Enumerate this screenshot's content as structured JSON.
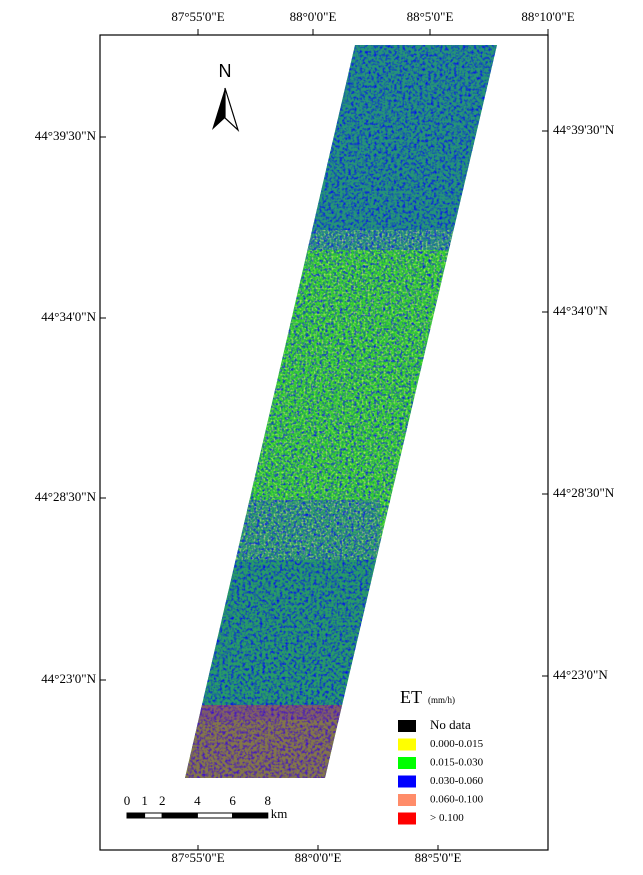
{
  "map": {
    "top_labels": [
      "87°55'0\"E",
      "88°0'0\"E",
      "88°5'0\"E",
      "88°10'0\"E"
    ],
    "bottom_labels": [
      "87°55'0\"E",
      "88°0'0\"E",
      "88°5'0\"E"
    ],
    "left_labels": [
      "44°39'30\"N",
      "44°34'0\"N",
      "44°28'30\"N",
      "44°23'0\"N"
    ],
    "right_labels": [
      "44°39'30\"N",
      "44°34'0\"N",
      "44°28'30\"N",
      "44°23'0\"N"
    ],
    "north": "N",
    "scale_bar": {
      "ticks": [
        0,
        1,
        2,
        4,
        6,
        8
      ],
      "unit": "km"
    },
    "legend": {
      "title": "ET",
      "unit": "(mm/h)",
      "items": [
        {
          "label": "No data",
          "color": "#000000"
        },
        {
          "label": "0.000-0.015",
          "color": "#ffff00"
        },
        {
          "label": "0.015-0.030",
          "color": "#00ff00"
        },
        {
          "label": "0.030-0.060",
          "color": "#0000ff"
        },
        {
          "label": "0.060-0.100",
          "color": "#ff8c69"
        },
        {
          "label": "> 0.100",
          "color": "#ff0000"
        }
      ]
    }
  }
}
